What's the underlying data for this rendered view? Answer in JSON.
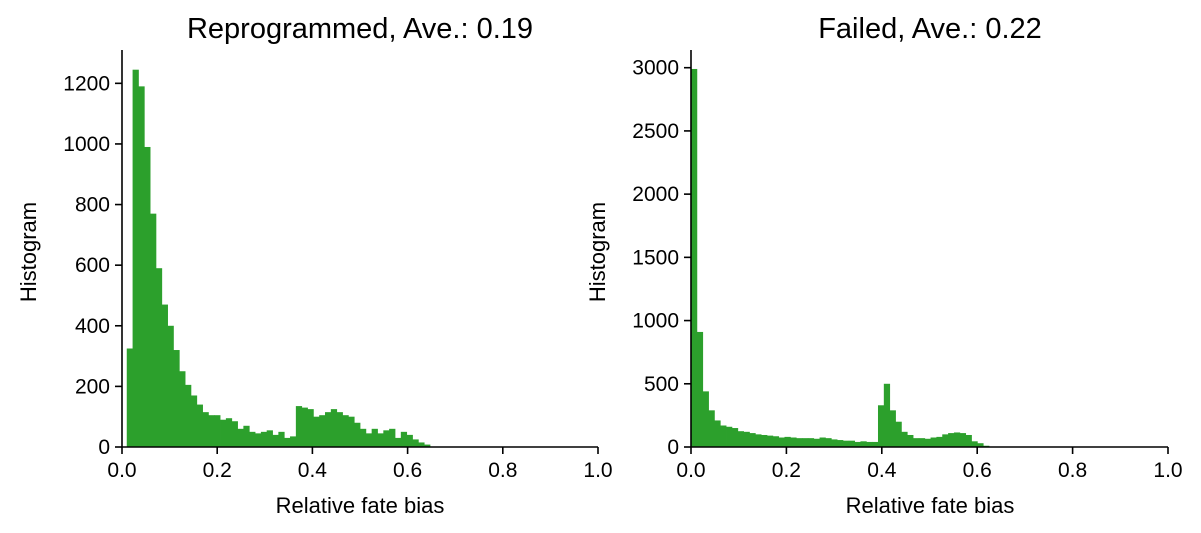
{
  "colors": {
    "bar": "#2ca02c",
    "axis": "#000000",
    "background": "#ffffff"
  },
  "chart_data": [
    {
      "type": "bar",
      "title": "Reprogrammed, Ave.: 0.19",
      "xlabel": "Relative fate bias",
      "ylabel": "Histogram",
      "xlim": [
        0,
        1
      ],
      "ylim": [
        0,
        1310
      ],
      "xticks": [
        "0.0",
        "0.2",
        "0.4",
        "0.6",
        "0.8",
        "1.0"
      ],
      "yticks": [
        "0",
        "200",
        "400",
        "600",
        "800",
        "1000",
        "1200"
      ],
      "grid": false,
      "bin_width": 0.01225,
      "bin_start": 0.01,
      "values": [
        325,
        1245,
        1190,
        990,
        770,
        590,
        470,
        400,
        320,
        250,
        205,
        170,
        140,
        115,
        105,
        105,
        90,
        95,
        85,
        60,
        70,
        50,
        45,
        50,
        55,
        40,
        50,
        30,
        35,
        135,
        130,
        125,
        100,
        105,
        115,
        125,
        115,
        105,
        100,
        80,
        60,
        45,
        60,
        45,
        55,
        60,
        30,
        50,
        40,
        25,
        15,
        8
      ]
    },
    {
      "type": "bar",
      "title": "Failed, Ave.: 0.22",
      "xlabel": "Relative fate bias",
      "ylabel": "Histogram",
      "xlim": [
        0,
        1
      ],
      "ylim": [
        0,
        3140
      ],
      "xticks": [
        "0.0",
        "0.2",
        "0.4",
        "0.6",
        "0.8",
        "1.0"
      ],
      "yticks": [
        "0",
        "500",
        "1000",
        "1500",
        "2000",
        "2500",
        "3000"
      ],
      "grid": false,
      "bin_width": 0.01225,
      "bin_start": 0.0,
      "values": [
        2990,
        910,
        440,
        290,
        210,
        170,
        160,
        150,
        125,
        120,
        110,
        100,
        95,
        90,
        85,
        75,
        80,
        75,
        70,
        70,
        70,
        65,
        75,
        70,
        60,
        55,
        50,
        50,
        40,
        45,
        40,
        40,
        330,
        500,
        290,
        200,
        120,
        95,
        70,
        70,
        65,
        75,
        80,
        100,
        110,
        115,
        110,
        95,
        45,
        30,
        10
      ]
    }
  ]
}
